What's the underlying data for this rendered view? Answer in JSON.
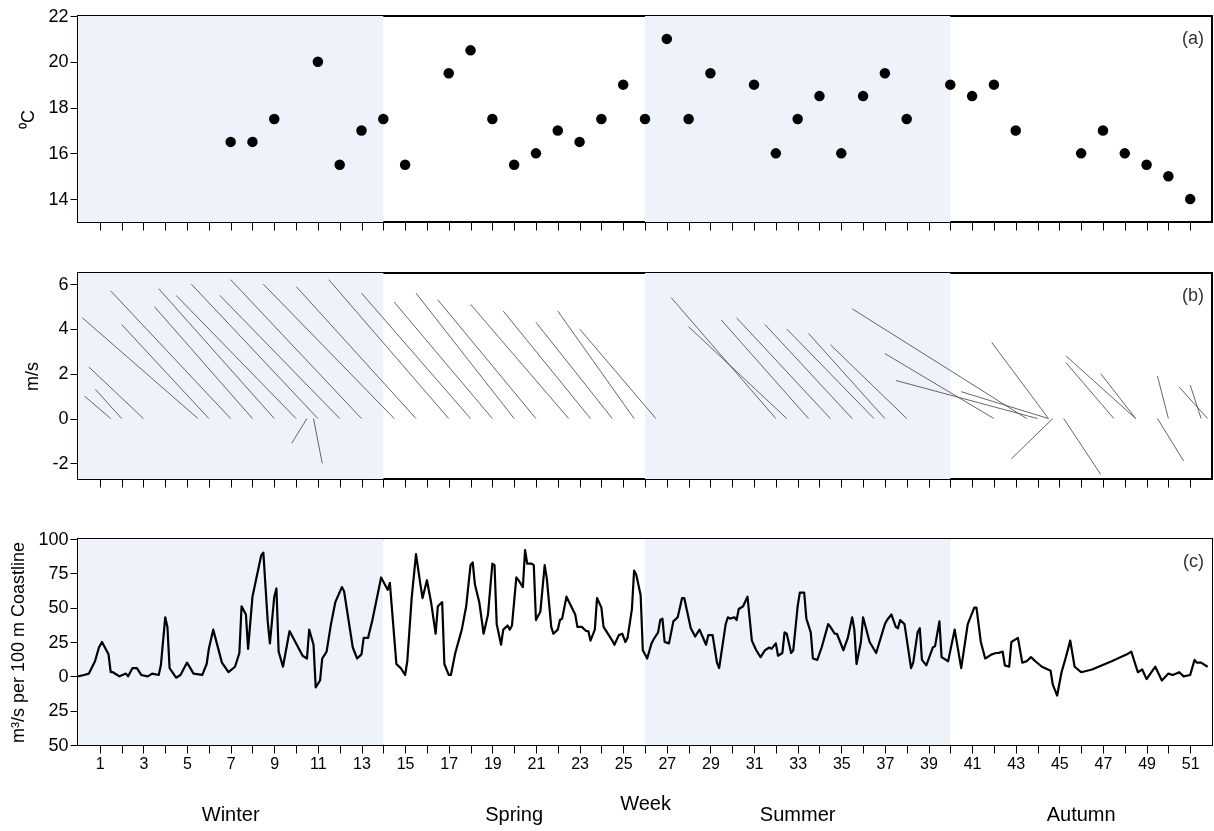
{
  "chart_data": [
    {
      "type": "scatter",
      "ylabel": "⁰C",
      "annotations": [
        "(a)"
      ],
      "marker": "circle",
      "tick_labels": "y",
      "xlim": [
        0,
        52
      ],
      "ylim": [
        13,
        22
      ],
      "yticks": [
        14,
        16,
        18,
        20,
        22
      ],
      "xticks": [
        1,
        2,
        3,
        4,
        5,
        6,
        7,
        8,
        9,
        10,
        11,
        12,
        13,
        14,
        15,
        16,
        17,
        18,
        19,
        20,
        21,
        22,
        23,
        24,
        25,
        26,
        27,
        28,
        29,
        30,
        31,
        32,
        33,
        34,
        35,
        36,
        37,
        38,
        39,
        40,
        41,
        42,
        43,
        44,
        45,
        46,
        47,
        48,
        49,
        50,
        51
      ],
      "bands": [
        {
          "axis": "x",
          "from": 0,
          "to": 14,
          "color": "#eef2fa"
        },
        {
          "axis": "x",
          "from": 26,
          "to": 40,
          "color": "#eef2fa"
        }
      ],
      "x": [
        7,
        8,
        9,
        11,
        12,
        13,
        14,
        15,
        17,
        18,
        19,
        20,
        21,
        22,
        23,
        24,
        25,
        26,
        27,
        28,
        29,
        31,
        32,
        33,
        34,
        35,
        36,
        37,
        38,
        40,
        41,
        42,
        43,
        46,
        47,
        48,
        49,
        50,
        51
      ],
      "series": [
        {
          "color": "#000000",
          "values": [
            16.5,
            16.5,
            17.5,
            20,
            15.5,
            17,
            17.5,
            15.5,
            19.5,
            20.5,
            17.5,
            15.5,
            16,
            17,
            16.5,
            17.5,
            19,
            17.5,
            21,
            17.5,
            19.5,
            19,
            16,
            17.5,
            18.5,
            16,
            18.5,
            19.5,
            17.5,
            19,
            18.5,
            19,
            17,
            16,
            17,
            16,
            15.5,
            15,
            14
          ]
        }
      ]
    },
    {
      "type": "line",
      "ylabel": "m/s",
      "annotations": [
        "(b)"
      ],
      "tick_labels": "y",
      "series": [
        {
          "color": "#555555",
          "x": [
            1.5,
            0.3
          ],
          "values": [
            0,
            1.0
          ]
        },
        {
          "color": "#555555",
          "x": [
            2.0,
            0.8
          ],
          "values": [
            0,
            1.3
          ]
        },
        {
          "color": "#555555",
          "x": [
            3.0,
            0.5
          ],
          "values": [
            0,
            2.3
          ]
        },
        {
          "color": "#555555",
          "x": [
            5.5,
            0.2
          ],
          "values": [
            0,
            4.5
          ]
        },
        {
          "color": "#555555",
          "x": [
            6.0,
            2.0
          ],
          "values": [
            0,
            4.2
          ]
        },
        {
          "color": "#555555",
          "x": [
            7.0,
            1.5
          ],
          "values": [
            0,
            5.7
          ]
        },
        {
          "color": "#555555",
          "x": [
            8.0,
            3.5
          ],
          "values": [
            0,
            5.0
          ]
        },
        {
          "color": "#555555",
          "x": [
            9.0,
            3.7
          ],
          "values": [
            0,
            5.8
          ]
        },
        {
          "color": "#555555",
          "x": [
            10.0,
            4.5
          ],
          "values": [
            0,
            5.5
          ]
        },
        {
          "color": "#555555",
          "x": [
            10.5,
            9.8
          ],
          "values": [
            0,
            -1.1
          ]
        },
        {
          "color": "#555555",
          "x": [
            10.8,
            11.2
          ],
          "values": [
            0,
            -2.0
          ]
        },
        {
          "color": "#555555",
          "x": [
            11.0,
            5.2
          ],
          "values": [
            0,
            6.0
          ]
        },
        {
          "color": "#555555",
          "x": [
            12.0,
            6.5
          ],
          "values": [
            0,
            5.5
          ]
        },
        {
          "color": "#555555",
          "x": [
            13.0,
            7.0
          ],
          "values": [
            0,
            6.2
          ]
        },
        {
          "color": "#555555",
          "x": [
            14.5,
            8.5
          ],
          "values": [
            0,
            6.0
          ]
        },
        {
          "color": "#555555",
          "x": [
            15.5,
            10.0
          ],
          "values": [
            0,
            5.9
          ]
        },
        {
          "color": "#555555",
          "x": [
            17.0,
            11.5
          ],
          "values": [
            0,
            6.2
          ]
        },
        {
          "color": "#555555",
          "x": [
            18.0,
            13.0
          ],
          "values": [
            0,
            5.6
          ]
        },
        {
          "color": "#555555",
          "x": [
            19.0,
            14.5
          ],
          "values": [
            0,
            5.2
          ]
        },
        {
          "color": "#555555",
          "x": [
            20.0,
            15.5
          ],
          "values": [
            0,
            5.6
          ]
        },
        {
          "color": "#555555",
          "x": [
            21.0,
            16.5
          ],
          "values": [
            0,
            5.3
          ]
        },
        {
          "color": "#555555",
          "x": [
            22.5,
            18.0
          ],
          "values": [
            0,
            5.1
          ]
        },
        {
          "color": "#555555",
          "x": [
            23.5,
            19.5
          ],
          "values": [
            0,
            4.8
          ]
        },
        {
          "color": "#555555",
          "x": [
            24.5,
            21.0
          ],
          "values": [
            0,
            4.3
          ]
        },
        {
          "color": "#555555",
          "x": [
            25.5,
            22.0
          ],
          "values": [
            0,
            4.8
          ]
        },
        {
          "color": "#555555",
          "x": [
            26.5,
            23.0
          ],
          "values": [
            0,
            4.0
          ]
        },
        {
          "color": "#555555",
          "x": [
            32.0,
            27.2
          ],
          "values": [
            0,
            5.4
          ]
        },
        {
          "color": "#555555",
          "x": [
            32.5,
            28.0
          ],
          "values": [
            0,
            4.1
          ]
        },
        {
          "color": "#555555",
          "x": [
            33.5,
            29.5
          ],
          "values": [
            0,
            4.4
          ]
        },
        {
          "color": "#555555",
          "x": [
            34.5,
            30.2
          ],
          "values": [
            0,
            4.5
          ]
        },
        {
          "color": "#555555",
          "x": [
            35.5,
            31.5
          ],
          "values": [
            0,
            4.2
          ]
        },
        {
          "color": "#555555",
          "x": [
            36.5,
            32.5
          ],
          "values": [
            0,
            4.0
          ]
        },
        {
          "color": "#555555",
          "x": [
            37.0,
            33.5
          ],
          "values": [
            0,
            3.8
          ]
        },
        {
          "color": "#555555",
          "x": [
            38.0,
            34.5
          ],
          "values": [
            0,
            3.3
          ]
        },
        {
          "color": "#555555",
          "x": [
            43.5,
            35.5
          ],
          "values": [
            0,
            4.9
          ]
        },
        {
          "color": "#555555",
          "x": [
            42.0,
            37.0
          ],
          "values": [
            0,
            2.9
          ]
        },
        {
          "color": "#555555",
          "x": [
            44.0,
            37.5
          ],
          "values": [
            0,
            1.7
          ]
        },
        {
          "color": "#555555",
          "x": [
            44.5,
            40.5
          ],
          "values": [
            0,
            1.2
          ]
        },
        {
          "color": "#555555",
          "x": [
            44.5,
            41.9
          ],
          "values": [
            0,
            3.4
          ]
        },
        {
          "color": "#555555",
          "x": [
            44.7,
            42.8
          ],
          "values": [
            0,
            -1.8
          ]
        },
        {
          "color": "#555555",
          "x": [
            45.2,
            46.9
          ],
          "values": [
            0,
            -2.5
          ]
        },
        {
          "color": "#555555",
          "x": [
            48.5,
            45.3
          ],
          "values": [
            0,
            2.8
          ]
        },
        {
          "color": "#555555",
          "x": [
            47.5,
            45.3
          ],
          "values": [
            0,
            2.5
          ]
        },
        {
          "color": "#555555",
          "x": [
            48.5,
            46.9
          ],
          "values": [
            0,
            2.0
          ]
        },
        {
          "color": "#555555",
          "x": [
            50.0,
            49.5
          ],
          "values": [
            0,
            1.9
          ]
        },
        {
          "color": "#555555",
          "x": [
            49.5,
            50.7
          ],
          "values": [
            0,
            -1.9
          ]
        },
        {
          "color": "#555555",
          "x": [
            51.5,
            51.0
          ],
          "values": [
            0,
            1.5
          ]
        },
        {
          "color": "#555555",
          "x": [
            51.8,
            50.5
          ],
          "values": [
            0,
            1.4
          ]
        }
      ],
      "xlim": [
        0,
        52
      ],
      "ylim": [
        -2.7,
        6.5
      ],
      "yticks": [
        -2,
        0,
        2,
        4,
        6
      ],
      "xticks": [
        1,
        2,
        3,
        4,
        5,
        6,
        7,
        8,
        9,
        10,
        11,
        12,
        13,
        14,
        15,
        16,
        17,
        18,
        19,
        20,
        21,
        22,
        23,
        24,
        25,
        26,
        27,
        28,
        29,
        30,
        31,
        32,
        33,
        34,
        35,
        36,
        37,
        38,
        39,
        40,
        41,
        42,
        43,
        44,
        45,
        46,
        47,
        48,
        49,
        50,
        51
      ],
      "bands": [
        {
          "axis": "x",
          "from": 0,
          "to": 14,
          "color": "#eef2fa"
        },
        {
          "axis": "x",
          "from": 26,
          "to": 40,
          "color": "#eef2fa"
        }
      ]
    },
    {
      "type": "line",
      "xlabel": "Week",
      "ylabel": "m³/s per 100 m Coastline",
      "annotations": [
        "(c)"
      ],
      "marker": "none",
      "line_style": "solid",
      "xlim": [
        0,
        52
      ],
      "ylim": [
        -50,
        100
      ],
      "yticks": [
        {
          "value": -50,
          "label": "50"
        },
        {
          "value": -25,
          "label": "25"
        },
        0,
        25,
        50,
        75,
        100
      ],
      "xticks": [
        1,
        {
          "value": 2,
          "label": null
        },
        3,
        {
          "value": 4,
          "label": null
        },
        5,
        {
          "value": 6,
          "label": null
        },
        7,
        {
          "value": 8,
          "label": null
        },
        9,
        {
          "value": 10,
          "label": null
        },
        11,
        {
          "value": 12,
          "label": null
        },
        13,
        {
          "value": 14,
          "label": null
        },
        15,
        {
          "value": 16,
          "label": null
        },
        17,
        {
          "value": 18,
          "label": null
        },
        19,
        {
          "value": 20,
          "label": null
        },
        21,
        {
          "value": 22,
          "label": null
        },
        23,
        {
          "value": 24,
          "label": null
        },
        25,
        {
          "value": 26,
          "label": null
        },
        27,
        {
          "value": 28,
          "label": null
        },
        29,
        {
          "value": 30,
          "label": null
        },
        31,
        {
          "value": 32,
          "label": null
        },
        33,
        {
          "value": 34,
          "label": null
        },
        35,
        {
          "value": 36,
          "label": null
        },
        37,
        {
          "value": 38,
          "label": null
        },
        39,
        {
          "value": 40,
          "label": null
        },
        41,
        {
          "value": 42,
          "label": null
        },
        43,
        {
          "value": 44,
          "label": null
        },
        45,
        {
          "value": 46,
          "label": null
        },
        47,
        {
          "value": 48,
          "label": null
        },
        49,
        {
          "value": 50,
          "label": null
        },
        51
      ],
      "bands": [
        {
          "axis": "x",
          "from": 0,
          "to": 14,
          "color": "#eef2fa",
          "label": "Winter"
        },
        {
          "axis": "x",
          "from": 14,
          "to": 26,
          "color": "#ffffff",
          "label": "Spring"
        },
        {
          "axis": "x",
          "from": 26,
          "to": 40,
          "color": "#eef2fa",
          "label": "Summer"
        },
        {
          "axis": "x",
          "from": 40,
          "to": 52,
          "color": "#ffffff",
          "label": "Autumn"
        }
      ],
      "x": [
        0,
        0.27,
        0.5,
        0.78,
        0.96,
        1.1,
        1.4,
        1.5,
        1.6,
        1.9,
        2.2,
        2.3,
        2.5,
        2.7,
        2.9,
        3.2,
        3.4,
        3.7,
        3.8,
        4.0,
        4.1,
        4.2,
        4.5,
        4.7,
        5.0,
        5.3,
        5.7,
        5.9,
        6.0,
        6.2,
        6.6,
        6.9,
        7.2,
        7.4,
        7.5,
        7.7,
        7.8,
        8.0,
        8.4,
        8.5,
        8.7,
        8.8,
        9.0,
        9.1,
        9.2,
        9.4,
        9.7,
        10.3,
        10.5,
        10.6,
        10.8,
        10.9,
        11.1,
        11.2,
        11.4,
        11.6,
        11.8,
        12.1,
        12.2,
        12.6,
        12.8,
        13.0,
        13.1,
        13.3,
        13.5,
        13.9,
        14.2,
        14.3,
        14.6,
        14.8,
        15.0,
        15.1,
        15.3,
        15.5,
        15.7,
        15.8,
        16.0,
        16.2,
        16.4,
        16.5,
        16.7,
        16.8,
        17.0,
        17.1,
        17.3,
        17.6,
        17.8,
        18.0,
        18.1,
        18.2,
        18.4,
        18.6,
        18.8,
        19.0,
        19.1,
        19.2,
        19.4,
        19.5,
        19.7,
        19.8,
        19.9,
        20.1,
        20.2,
        20.4,
        20.5,
        20.6,
        20.8,
        20.9,
        21.0,
        21.2,
        21.4,
        21.5,
        21.7,
        21.8,
        22.0,
        22.1,
        22.2,
        22.4,
        22.8,
        22.9,
        23.1,
        23.3,
        23.4,
        23.5,
        23.7,
        23.8,
        24.0,
        24.1,
        24.5,
        24.6,
        24.8,
        24.96,
        25.1,
        25.2,
        25.4,
        25.5,
        25.6,
        25.8,
        25.9,
        26.1,
        26.3,
        26.4,
        26.6,
        26.7,
        26.8,
        26.9,
        27.1,
        27.3,
        27.5,
        27.7,
        27.8,
        28.1,
        28.3,
        28.5,
        28.8,
        28.9,
        29.1,
        29.3,
        29.4,
        29.7,
        29.8,
        29.9,
        30.1,
        30.2,
        30.3,
        30.5,
        30.7,
        30.9,
        31.1,
        31.3,
        31.5,
        31.7,
        31.8,
        32.0,
        32.1,
        32.3,
        32.4,
        32.5,
        32.7,
        32.8,
        33.0,
        33.1,
        33.3,
        33.4,
        33.6,
        33.7,
        33.9,
        34.1,
        34.4,
        34.5,
        34.7,
        34.8,
        35.1,
        35.3,
        35.5,
        35.6,
        35.7,
        35.9,
        36.0,
        36.3,
        36.6,
        37.0,
        37.1,
        37.3,
        37.5,
        37.6,
        37.7,
        37.9,
        38.2,
        38.3,
        38.5,
        38.6,
        38.7,
        38.9,
        39.2,
        39.3,
        39.5,
        39.6,
        39.9,
        40.2,
        40.5,
        40.8,
        41.1,
        41.2,
        41.4,
        41.6,
        41.9,
        42.1,
        42.2,
        42.4,
        42.5,
        42.7,
        42.8,
        43.1,
        43.3,
        43.5,
        43.7,
        43.9,
        44.2,
        44.6,
        44.7,
        44.9,
        45.1,
        45.3,
        45.5,
        45.7,
        46.0,
        46.5,
        47.4,
        48.1,
        48.3,
        48.6,
        48.8,
        49.0,
        49.4,
        49.7,
        50.0,
        50.2,
        50.5,
        50.7,
        51.0,
        51.2,
        51.3,
        51.5,
        51.8
      ],
      "series": [
        {
          "color": "#000000",
          "values": [
            0,
            1,
            2,
            11,
            21,
            25,
            16,
            3,
            3,
            0,
            2,
            0,
            6,
            6,
            1,
            0,
            2,
            1,
            8,
            43,
            36,
            6,
            -1,
            1,
            10,
            2,
            1,
            9,
            20,
            34,
            10,
            3,
            7,
            17,
            51,
            45,
            20,
            58,
            88,
            90,
            40,
            24,
            58,
            64,
            18,
            7,
            33,
            15,
            13,
            34,
            23,
            -8,
            -3,
            13,
            18,
            38,
            54,
            65,
            62,
            21,
            13,
            16,
            28,
            28,
            41,
            72,
            63,
            68,
            9,
            6,
            1,
            11,
            57,
            89,
            67,
            57,
            70,
            53,
            31,
            51,
            54,
            9,
            1,
            1,
            17,
            34,
            51,
            81,
            83,
            67,
            54,
            31,
            45,
            82,
            81,
            38,
            23,
            34,
            37,
            34,
            37,
            72,
            70,
            65,
            92,
            82,
            82,
            81,
            41,
            47,
            81,
            71,
            36,
            31,
            34,
            41,
            42,
            58,
            45,
            36,
            36,
            33,
            33,
            26,
            34,
            57,
            50,
            36,
            26,
            23,
            30,
            31,
            25,
            28,
            49,
            77,
            74,
            59,
            19,
            13,
            24,
            27,
            32,
            41,
            42,
            25,
            24,
            40,
            43,
            57,
            57,
            35,
            29,
            34,
            23,
            30,
            30,
            10,
            6,
            38,
            43,
            42,
            43,
            41,
            49,
            51,
            58,
            26,
            19,
            14,
            19,
            21,
            20,
            24,
            15,
            17,
            32,
            31,
            17,
            19,
            51,
            61,
            61,
            42,
            32,
            13,
            12,
            21,
            38,
            36,
            31,
            31,
            19,
            28,
            43,
            34,
            9,
            25,
            43,
            25,
            17,
            38,
            41,
            45,
            36,
            35,
            41,
            38,
            6,
            10,
            32,
            35,
            12,
            8,
            21,
            22,
            40,
            14,
            11,
            34,
            6,
            38,
            50,
            50,
            25,
            13,
            16,
            17,
            17,
            18,
            8,
            7,
            25,
            28,
            10,
            11,
            14,
            11,
            7,
            4,
            -6,
            -14,
            3,
            14,
            26,
            7,
            3,
            5,
            11,
            16,
            18,
            3,
            5,
            -2,
            7,
            -3,
            2,
            1,
            3,
            0,
            1,
            12,
            10,
            10,
            7
          ]
        }
      ]
    }
  ]
}
